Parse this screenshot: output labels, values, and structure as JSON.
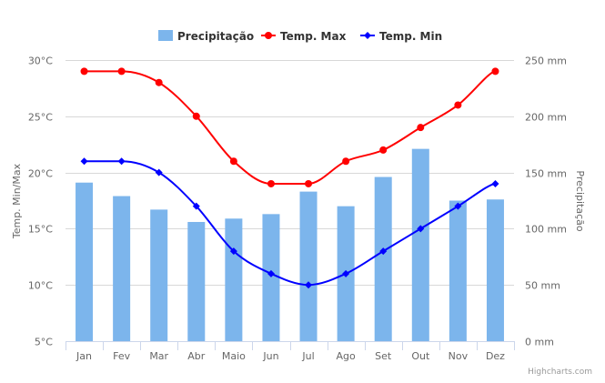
{
  "chart_data": {
    "type": "bar+line",
    "title": "",
    "categories": [
      "Jan",
      "Fev",
      "Mar",
      "Abr",
      "Maio",
      "Jun",
      "Jul",
      "Ago",
      "Set",
      "Out",
      "Nov",
      "Dez"
    ],
    "series": [
      {
        "name": "Precipitação",
        "type": "bar",
        "axis": "right",
        "color": "#7cb5ec",
        "values": [
          141,
          129,
          117,
          106,
          109,
          113,
          133,
          120,
          146,
          171,
          125,
          126
        ]
      },
      {
        "name": "Temp. Max",
        "type": "line",
        "axis": "left",
        "color": "#ff0000",
        "marker": "circle",
        "values": [
          29,
          29,
          28,
          25,
          21,
          19,
          19,
          21,
          22,
          24,
          26,
          29
        ]
      },
      {
        "name": "Temp. Min",
        "type": "line",
        "axis": "left",
        "color": "#0000ff",
        "marker": "diamond",
        "values": [
          21,
          21,
          20,
          17,
          13,
          11,
          10,
          11,
          13,
          15,
          17,
          19
        ]
      }
    ],
    "left_axis": {
      "title": "Temp. Min/Max",
      "range": [
        5,
        30
      ],
      "ticks": [
        5,
        10,
        15,
        20,
        25,
        30
      ],
      "tick_labels": [
        "5°C",
        "10°C",
        "15°C",
        "20°C",
        "25°C",
        "30°C"
      ]
    },
    "right_axis": {
      "title": "Precipitação",
      "range": [
        0,
        250
      ],
      "ticks": [
        0,
        50,
        100,
        150,
        200,
        250
      ],
      "tick_labels": [
        "0 mm",
        "50 mm",
        "100 mm",
        "150 mm",
        "200 mm",
        "250 mm"
      ]
    },
    "grid": true,
    "legend_position": "top-center"
  },
  "credits": "Highcharts.com"
}
